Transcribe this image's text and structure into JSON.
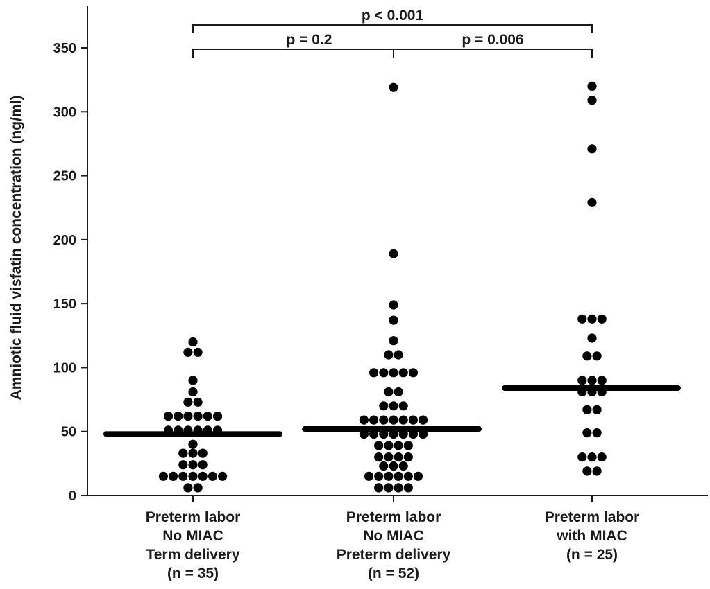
{
  "chart_data": {
    "type": "scatter",
    "subtype": "dot-plot",
    "title": "",
    "xlabel": "",
    "ylabel": "Amniotic fluid visfatin concentration (ng/ml)",
    "ylim": [
      0,
      375
    ],
    "yticks": [
      0,
      50,
      100,
      150,
      200,
      250,
      300,
      350
    ],
    "grid": false,
    "legend": "none",
    "categories": [
      {
        "lines": [
          "Preterm labor",
          "No MIAC",
          "Term delivery",
          "(n = 35)"
        ]
      },
      {
        "lines": [
          "Preterm labor",
          "No MIAC",
          "Preterm delivery",
          "(n = 52)"
        ]
      },
      {
        "lines": [
          "Preterm labor",
          "with MIAC",
          "(n = 25)"
        ]
      }
    ],
    "series": [
      {
        "values": [
          120,
          112,
          112,
          90,
          81,
          73,
          73,
          62,
          62,
          62,
          62,
          62,
          62,
          51,
          51,
          51,
          51,
          51,
          51,
          40,
          33,
          33,
          33,
          24,
          24,
          24,
          15,
          15,
          15,
          15,
          15,
          15,
          15,
          6,
          6
        ],
        "median": 48
      },
      {
        "values": [
          319,
          189,
          149,
          137,
          121,
          110,
          110,
          96,
          96,
          96,
          96,
          96,
          81,
          81,
          70,
          70,
          70,
          59,
          59,
          59,
          59,
          59,
          59,
          59,
          48,
          48,
          48,
          48,
          48,
          48,
          48,
          39,
          39,
          39,
          39,
          30,
          30,
          30,
          30,
          23,
          23,
          23,
          15,
          15,
          15,
          15,
          15,
          15,
          6,
          6,
          6,
          6
        ],
        "median": 52
      },
      {
        "values": [
          320,
          309,
          271,
          229,
          138,
          138,
          138,
          123,
          109,
          109,
          90,
          90,
          90,
          81,
          81,
          81,
          67,
          67,
          49,
          49,
          30,
          30,
          30,
          19,
          19
        ],
        "median": 84
      }
    ],
    "comparisons": [
      {
        "from": 0,
        "to": 2,
        "label": "p < 0.001"
      },
      {
        "from": 0,
        "to": 1,
        "label": "p = 0.2"
      },
      {
        "from": 1,
        "to": 2,
        "label": "p = 0.006"
      }
    ]
  }
}
